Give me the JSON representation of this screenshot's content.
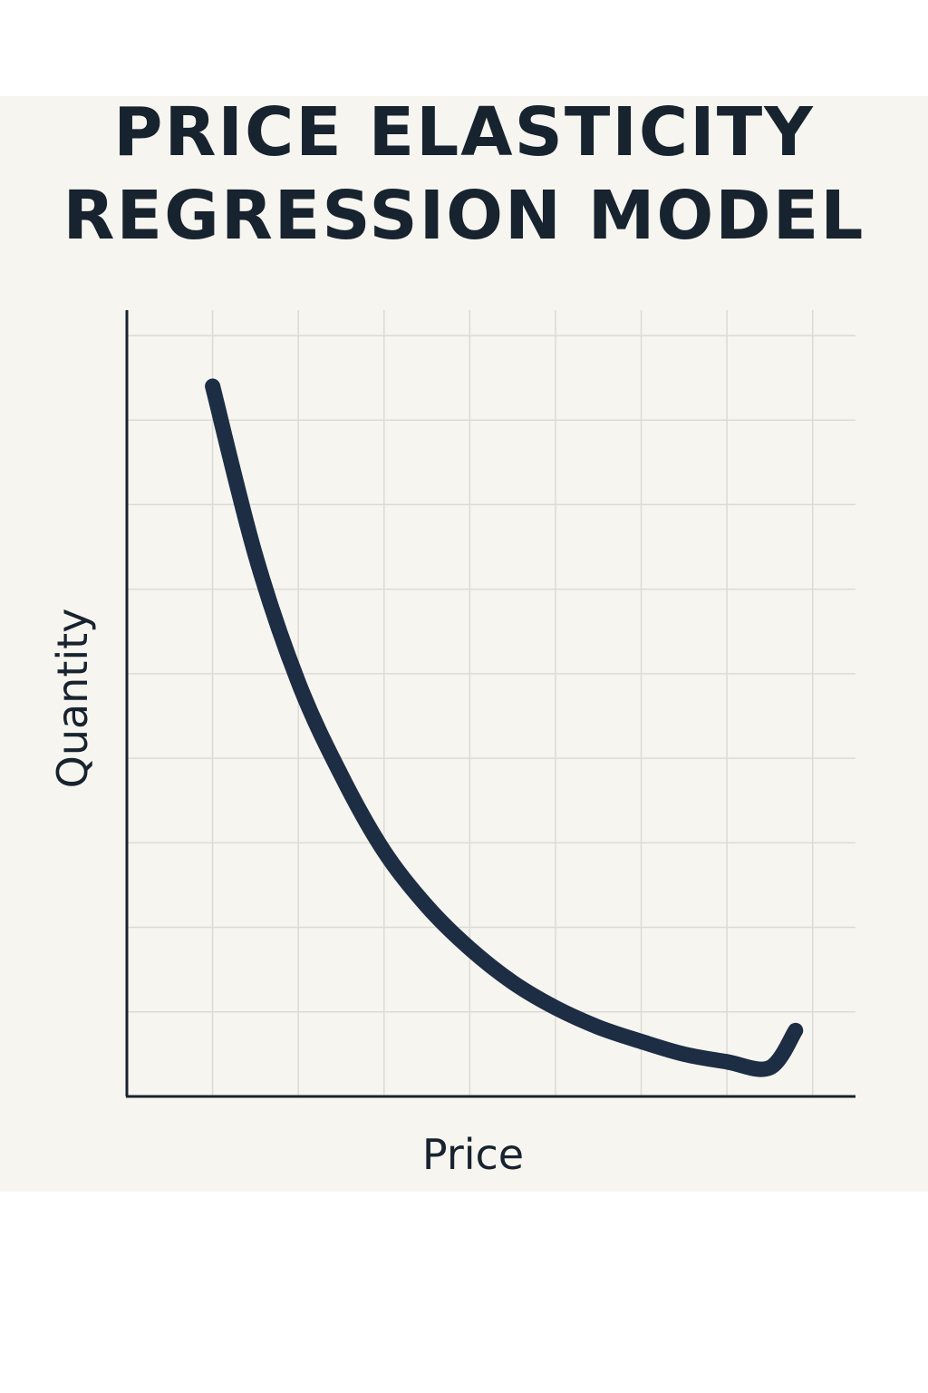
{
  "chart_data": {
    "type": "line",
    "title_lines": [
      "PRICE ELASTICITY",
      "REGRESSION MODEL"
    ],
    "xlabel": "Price",
    "ylabel": "Quantity",
    "xlim": [
      0,
      8.5
    ],
    "ylim": [
      0,
      9.3
    ],
    "grid": true,
    "legend": "none",
    "series": [
      {
        "x": [
          1.0,
          1.5,
          2.0,
          2.5,
          3.0,
          3.5,
          4.0,
          4.5,
          5.0,
          5.5,
          6.0,
          6.5,
          7.0,
          7.5,
          7.8
        ],
        "values": [
          8.4,
          6.4,
          4.9,
          3.8,
          2.9,
          2.25,
          1.75,
          1.35,
          1.05,
          0.82,
          0.65,
          0.5,
          0.41,
          0.34,
          0.78
        ]
      }
    ]
  },
  "colors": {
    "background": "#f7f5f0",
    "curve": "#1c2d44",
    "axis": "#17232e",
    "grid": "#dcdad5",
    "text": "#17232e"
  }
}
